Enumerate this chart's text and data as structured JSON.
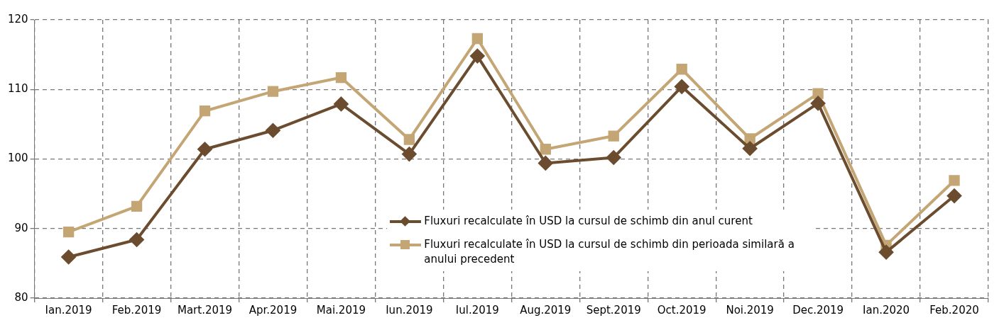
{
  "chart_data": {
    "type": "line",
    "categories": [
      "Ian.2019",
      "Feb.2019",
      "Mart.2019",
      "Apr.2019",
      "Mai.2019",
      "Iun.2019",
      "Iul.2019",
      "Aug.2019",
      "Sept.2019",
      "Oct.2019",
      "Noi.2019",
      "Dec.2019",
      "Ian.2020",
      "Feb.2020"
    ],
    "series": [
      {
        "name": "Fluxuri recalculate în USD la cursul de schimb din anul curent",
        "color": "#6b4c2e",
        "marker": "diamond",
        "values": [
          85.9,
          88.4,
          101.4,
          104.1,
          107.9,
          100.7,
          114.8,
          99.4,
          100.2,
          110.4,
          101.5,
          108.0,
          86.6,
          94.7
        ]
      },
      {
        "name": "Fluxuri recalculate în USD la cursul de schimb din perioada similară a anului precedent",
        "color": "#c4a574",
        "marker": "square",
        "values": [
          89.5,
          93.2,
          106.9,
          109.7,
          111.7,
          102.8,
          117.3,
          101.4,
          103.3,
          112.9,
          102.9,
          109.4,
          87.6,
          96.9
        ]
      }
    ],
    "ylim": [
      80,
      120
    ],
    "yticks": [
      80,
      90,
      100,
      110,
      120
    ],
    "grid": true,
    "legend": "bottom",
    "line_style": "solid"
  }
}
